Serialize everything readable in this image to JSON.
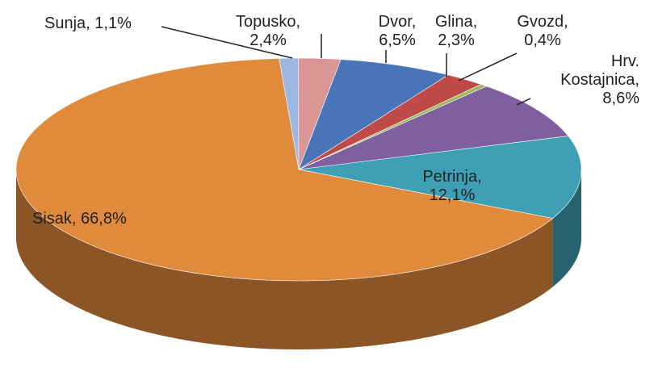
{
  "chart_data": {
    "type": "pie",
    "values": [
      1.1,
      2.4,
      6.5,
      2.3,
      0.4,
      8.6,
      12.1,
      66.8
    ],
    "value_labels": [
      "Sunja, 1,1%",
      "Topusko,\n2,4%",
      "Dvor,\n6,5%",
      "Glina,\n2,3%",
      "Gvozd,\n0,4%",
      "Hrv.\nKostajnica,\n8,6%",
      "Petrinja,\n12,1%",
      "Sisak, 66,8%"
    ],
    "colors": [
      "#9db8e0",
      "#d99694",
      "#4a74b8",
      "#be4b48",
      "#9bbb59",
      "#7f5fa0",
      "#3e9fb5",
      "#e08a3c"
    ]
  }
}
